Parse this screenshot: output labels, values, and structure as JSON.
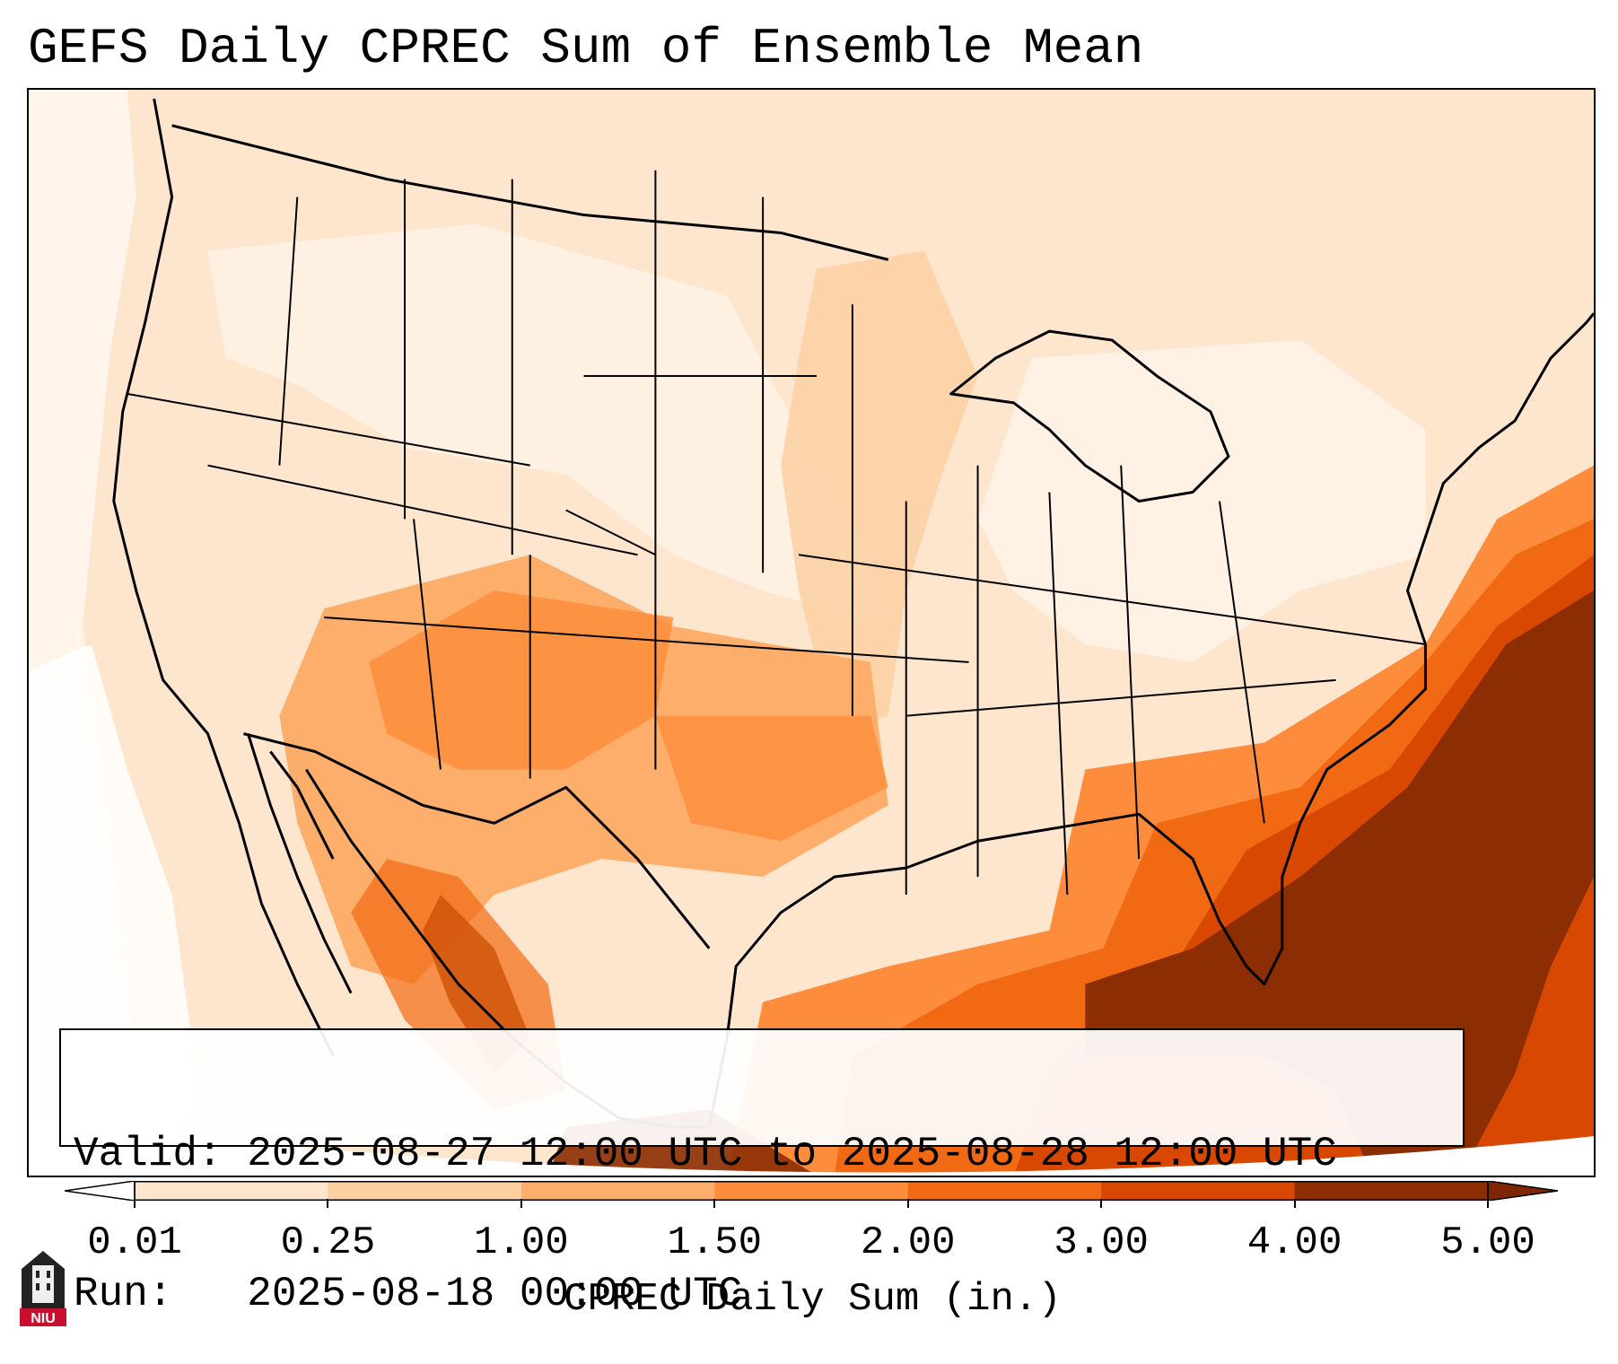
{
  "title": "GEFS Daily CPREC Sum of Ensemble Mean",
  "info": {
    "valid_line": "Valid: 2025-08-27 12:00 UTC to 2025-08-28 12:00 UTC",
    "run_line": "Run:   2025-08-18 00:00 UTC"
  },
  "colorbar": {
    "label": "CPREC Daily Sum (in.)",
    "tick_labels": [
      "0.01",
      "0.25",
      "1.00",
      "1.50",
      "2.00",
      "3.00",
      "4.00",
      "5.00"
    ],
    "colors": [
      "#fff5eb",
      "#fee6ce",
      "#fdd0a2",
      "#fdae6b",
      "#fd8d3c",
      "#f16913",
      "#d94801",
      "#8c2d04"
    ],
    "under_color": "#ffffff",
    "over_color": "#7f2704",
    "extend": "both"
  },
  "logo": {
    "text": "NIU",
    "accent_color": "#c8102e"
  }
}
